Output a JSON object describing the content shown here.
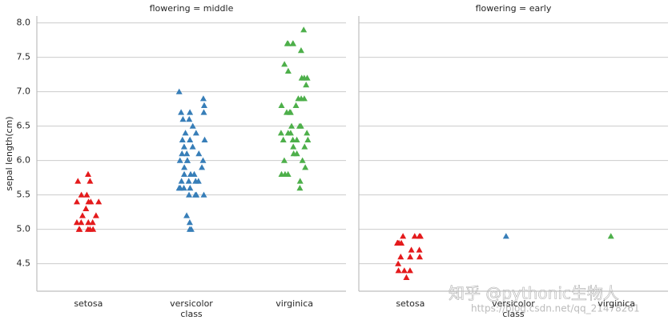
{
  "chart_data": [
    {
      "type": "strip",
      "title": "flowering = middle",
      "x_label": "class",
      "y_label": "sepal length(cm)",
      "categories": [
        "setosa",
        "versicolor",
        "virginica"
      ],
      "colors": [
        "#e41a1c",
        "#377eb8",
        "#4daf4a"
      ],
      "values": [
        [
          5.8,
          5.7,
          5.7,
          5.5,
          5.5,
          5.4,
          5.4,
          5.4,
          5.4,
          5.3,
          5.2,
          5.2,
          5.1,
          5.1,
          5.1,
          5.1,
          5.0,
          5.0,
          5.0,
          5.0,
          5.0
        ],
        [
          7.0,
          6.9,
          6.8,
          6.7,
          6.7,
          6.7,
          6.6,
          6.6,
          6.5,
          6.4,
          6.4,
          6.3,
          6.3,
          6.3,
          6.2,
          6.2,
          6.1,
          6.1,
          6.1,
          6.0,
          6.0,
          6.0,
          6.0,
          5.9,
          5.9,
          5.8,
          5.8,
          5.8,
          5.7,
          5.7,
          5.7,
          5.7,
          5.6,
          5.6,
          5.6,
          5.6,
          5.5,
          5.5,
          5.5,
          5.5,
          5.2,
          5.1,
          5.0,
          5.0
        ],
        [
          7.9,
          7.7,
          7.7,
          7.7,
          7.7,
          7.6,
          7.4,
          7.3,
          7.2,
          7.2,
          7.2,
          7.1,
          6.9,
          6.9,
          6.9,
          6.8,
          6.8,
          6.7,
          6.7,
          6.7,
          6.5,
          6.5,
          6.5,
          6.4,
          6.4,
          6.4,
          6.4,
          6.3,
          6.3,
          6.3,
          6.3,
          6.2,
          6.2,
          6.1,
          6.1,
          6.0,
          6.0,
          5.9,
          5.8,
          5.8,
          5.8,
          5.7,
          5.6
        ]
      ],
      "ylim": [
        4.1,
        8.1
      ],
      "yticks": [
        {
          "value": 4.5,
          "label": "4.5"
        },
        {
          "value": 5,
          "label": "5.0"
        },
        {
          "value": 5.5,
          "label": "5.5"
        },
        {
          "value": 6,
          "label": "6.0"
        },
        {
          "value": 6.5,
          "label": "6.5"
        },
        {
          "value": 7,
          "label": "7.0"
        },
        {
          "value": 7.5,
          "label": "7.5"
        },
        {
          "value": 8,
          "label": "8.0"
        }
      ],
      "grid": true
    },
    {
      "type": "strip",
      "title": "flowering = early",
      "x_label": "class",
      "categories": [
        "setosa",
        "versicolor",
        "virginica"
      ],
      "colors": [
        "#e41a1c",
        "#377eb8",
        "#4daf4a"
      ],
      "values": [
        [
          4.9,
          4.9,
          4.9,
          4.9,
          4.8,
          4.8,
          4.8,
          4.8,
          4.7,
          4.7,
          4.6,
          4.6,
          4.6,
          4.5,
          4.4,
          4.4,
          4.4,
          4.3
        ],
        [
          4.9
        ],
        [
          4.9
        ]
      ],
      "grid": true
    }
  ],
  "watermark": [
    "知乎 @pythonic生物人",
    "https://blog.csdn.net/qq_21478261"
  ]
}
